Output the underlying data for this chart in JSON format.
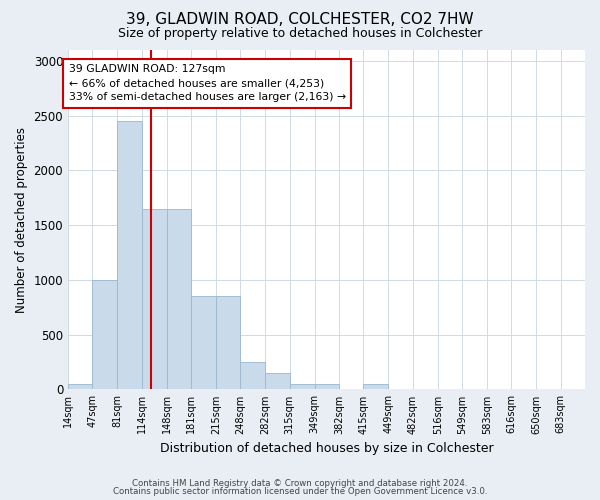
{
  "title1": "39, GLADWIN ROAD, COLCHESTER, CO2 7HW",
  "title2": "Size of property relative to detached houses in Colchester",
  "xlabel": "Distribution of detached houses by size in Colchester",
  "ylabel": "Number of detached properties",
  "footer1": "Contains HM Land Registry data © Crown copyright and database right 2024.",
  "footer2": "Contains public sector information licensed under the Open Government Licence v3.0.",
  "bin_edges": [
    14,
    47,
    81,
    114,
    148,
    181,
    215,
    248,
    282,
    315,
    349,
    382,
    415,
    449,
    482,
    516,
    549,
    583,
    616,
    650,
    683
  ],
  "bar_heights": [
    50,
    1000,
    2450,
    1650,
    1650,
    850,
    850,
    250,
    150,
    50,
    50,
    0,
    50,
    0,
    0,
    0,
    0,
    0,
    0,
    0
  ],
  "bar_color": "#c9daea",
  "bar_edge_color": "#9ab8ce",
  "red_line_x": 127,
  "annotation_text": "39 GLADWIN ROAD: 127sqm\n← 66% of detached houses are smaller (4,253)\n33% of semi-detached houses are larger (2,163) →",
  "annotation_box_color": "#ffffff",
  "annotation_box_edge": "#cc0000",
  "red_line_color": "#cc0000",
  "ylim": [
    0,
    3100
  ],
  "yticks": [
    0,
    500,
    1000,
    1500,
    2000,
    2500,
    3000
  ],
  "bg_color": "#e8eef4",
  "plot_bg_color": "#ffffff",
  "grid_color": "#d0dae2"
}
